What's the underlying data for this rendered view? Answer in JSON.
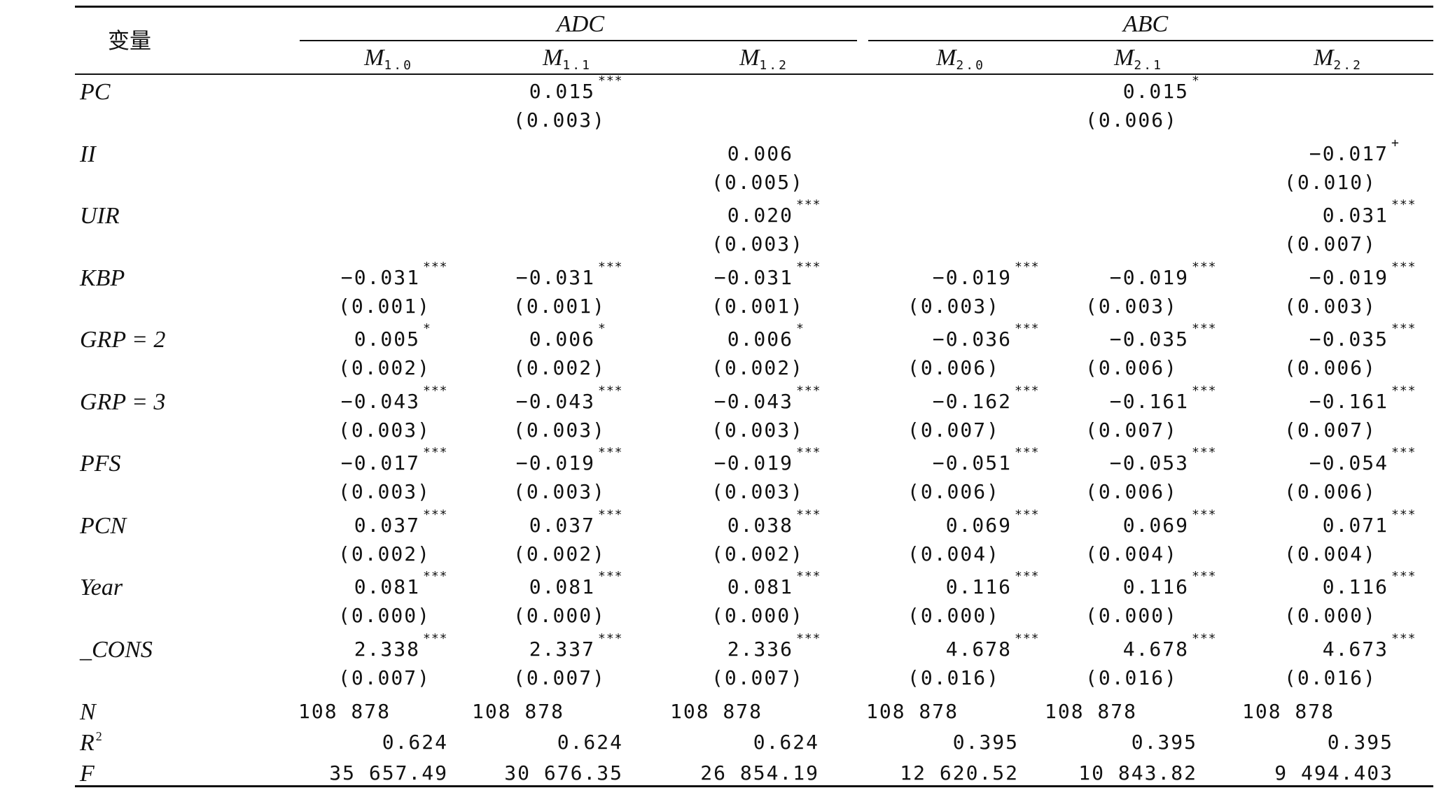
{
  "header": {
    "var_label": "变量",
    "groups": [
      {
        "label": "ADC",
        "models": [
          {
            "base": "M",
            "sub": "1.0"
          },
          {
            "base": "M",
            "sub": "1.1"
          },
          {
            "base": "M",
            "sub": "1.2"
          }
        ]
      },
      {
        "label": "ABC",
        "models": [
          {
            "base": "M",
            "sub": "2.0"
          },
          {
            "base": "M",
            "sub": "2.1"
          },
          {
            "base": "M",
            "sub": "2.2"
          }
        ]
      }
    ]
  },
  "rows": [
    {
      "var": "PC",
      "coef": [
        "",
        "0.015",
        "",
        "",
        "0.015",
        ""
      ],
      "stars": [
        "",
        "***",
        "",
        "",
        "*",
        ""
      ],
      "se": [
        "",
        "(0.003)",
        "",
        "",
        "(0.006)",
        ""
      ]
    },
    {
      "var": "II",
      "coef": [
        "",
        "",
        "0.006",
        "",
        "",
        "−0.017"
      ],
      "stars": [
        "",
        "",
        "",
        "",
        "",
        "+"
      ],
      "se": [
        "",
        "",
        "(0.005)",
        "",
        "",
        "(0.010)"
      ]
    },
    {
      "var": "UIR",
      "coef": [
        "",
        "",
        "0.020",
        "",
        "",
        "0.031"
      ],
      "stars": [
        "",
        "",
        "***",
        "",
        "",
        "***"
      ],
      "se": [
        "",
        "",
        "(0.003)",
        "",
        "",
        "(0.007)"
      ]
    },
    {
      "var": "KBP",
      "coef": [
        "−0.031",
        "−0.031",
        "−0.031",
        "−0.019",
        "−0.019",
        "−0.019"
      ],
      "stars": [
        "***",
        "***",
        "***",
        "***",
        "***",
        "***"
      ],
      "se": [
        "(0.001)",
        "(0.001)",
        "(0.001)",
        "(0.003)",
        "(0.003)",
        "(0.003)"
      ]
    },
    {
      "var": "GRP = 2",
      "coef": [
        "0.005",
        "0.006",
        "0.006",
        "−0.036",
        "−0.035",
        "−0.035"
      ],
      "stars": [
        "*",
        "*",
        "*",
        "***",
        "***",
        "***"
      ],
      "se": [
        "(0.002)",
        "(0.002)",
        "(0.002)",
        "(0.006)",
        "(0.006)",
        "(0.006)"
      ]
    },
    {
      "var": "GRP = 3",
      "coef": [
        "−0.043",
        "−0.043",
        "−0.043",
        "−0.162",
        "−0.161",
        "−0.161"
      ],
      "stars": [
        "***",
        "***",
        "***",
        "***",
        "***",
        "***"
      ],
      "se": [
        "(0.003)",
        "(0.003)",
        "(0.003)",
        "(0.007)",
        "(0.007)",
        "(0.007)"
      ]
    },
    {
      "var": "PFS",
      "coef": [
        "−0.017",
        "−0.019",
        "−0.019",
        "−0.051",
        "−0.053",
        "−0.054"
      ],
      "stars": [
        "***",
        "***",
        "***",
        "***",
        "***",
        "***"
      ],
      "se": [
        "(0.003)",
        "(0.003)",
        "(0.003)",
        "(0.006)",
        "(0.006)",
        "(0.006)"
      ]
    },
    {
      "var": "PCN",
      "coef": [
        "0.037",
        "0.037",
        "0.038",
        "0.069",
        "0.069",
        "0.071"
      ],
      "stars": [
        "***",
        "***",
        "***",
        "***",
        "***",
        "***"
      ],
      "se": [
        "(0.002)",
        "(0.002)",
        "(0.002)",
        "(0.004)",
        "(0.004)",
        "(0.004)"
      ]
    },
    {
      "var": "Year",
      "coef": [
        "0.081",
        "0.081",
        "0.081",
        "0.116",
        "0.116",
        "0.116"
      ],
      "stars": [
        "***",
        "***",
        "***",
        "***",
        "***",
        "***"
      ],
      "se": [
        "(0.000)",
        "(0.000)",
        "(0.000)",
        "(0.000)",
        "(0.000)",
        "(0.000)"
      ]
    },
    {
      "var": "_CONS",
      "coef": [
        "2.338",
        "2.337",
        "2.336",
        "4.678",
        "4.678",
        "4.673"
      ],
      "stars": [
        "***",
        "***",
        "***",
        "***",
        "***",
        "***"
      ],
      "se": [
        "(0.007)",
        "(0.007)",
        "(0.007)",
        "(0.016)",
        "(0.016)",
        "(0.016)"
      ]
    }
  ],
  "stats": [
    {
      "var": "N",
      "sup": "",
      "values": [
        "108 878",
        "108 878",
        "108 878",
        "108 878",
        "108 878",
        "108 878"
      ]
    },
    {
      "var": "R",
      "sup": "2",
      "values": [
        "0.624",
        "0.624",
        "0.624",
        "0.395",
        "0.395",
        "0.395"
      ]
    },
    {
      "var": "F",
      "sup": "",
      "values": [
        "35 657.49",
        "30 676.35",
        "26 854.19",
        "12 620.52",
        "10 843.82",
        "9 494.403"
      ]
    }
  ]
}
